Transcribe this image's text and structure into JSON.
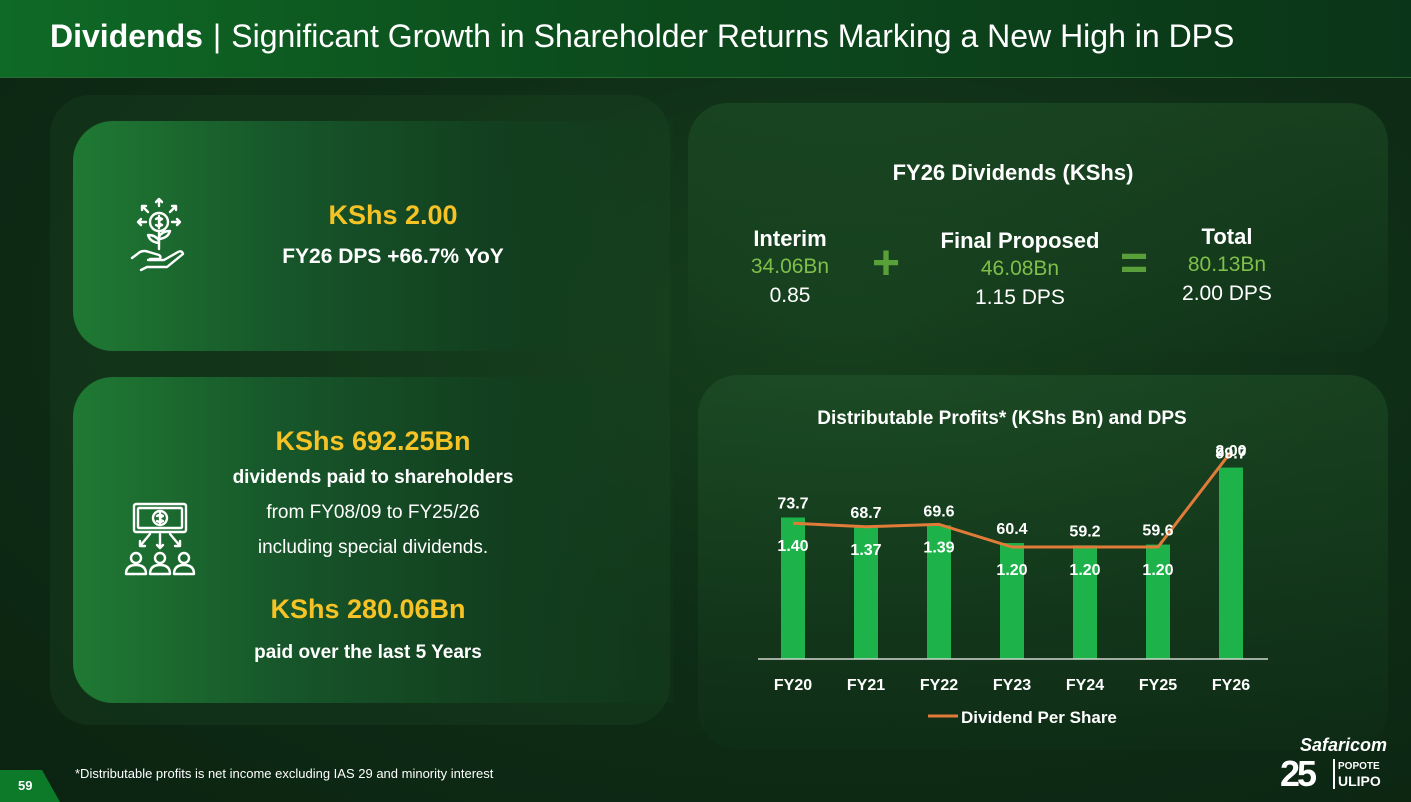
{
  "header": {
    "title_bold": "Dividends",
    "separator": "|",
    "title_rest": "Significant Growth in Shareholder Returns Marking a New High in DPS"
  },
  "card1": {
    "icon": "money-plant-hand-icon",
    "value": "KShs 2.00",
    "label": "FY26 DPS +66.7% YoY"
  },
  "card2": {
    "icon": "cash-distribution-people-icon",
    "value": "KShs 692.25Bn",
    "line1": "dividends paid to shareholders",
    "line2": "from FY08/09 to FY25/26",
    "line3": "including special dividends.",
    "value2": "KShs 280.06Bn",
    "line4": "paid over the last 5 Years"
  },
  "dividends": {
    "title": "FY26 Dividends (KShs)",
    "interim": {
      "label": "Interim",
      "amount": "34.06Bn",
      "dps": "0.85"
    },
    "plus": "+",
    "final": {
      "label": "Final Proposed",
      "amount": "46.08Bn",
      "dps": "1.15 DPS"
    },
    "equals": "=",
    "total": {
      "label": "Total",
      "amount": "80.13Bn",
      "dps": "2.00 DPS"
    }
  },
  "chart_data": {
    "type": "bar",
    "title": "Distributable Profits* (KShs Bn) and DPS",
    "categories": [
      "FY20",
      "FY21",
      "FY22",
      "FY23",
      "FY24",
      "FY25",
      "FY26"
    ],
    "series": [
      {
        "type": "bar",
        "values": [
          73.7,
          68.7,
          69.6,
          60.4,
          59.2,
          59.6,
          99.7
        ]
      },
      {
        "type": "line",
        "name": "Dividend Per Share",
        "values": [
          1.4,
          1.37,
          1.39,
          1.2,
          1.2,
          1.2,
          2.0
        ]
      }
    ],
    "bar_labels": [
      "73.7",
      "68.7",
      "69.6",
      "60.4",
      "59.2",
      "59.6",
      "99.7"
    ],
    "line_labels": [
      "1.40",
      "1.37",
      "1.39",
      "1.20",
      "1.20",
      "1.20",
      "2.00"
    ],
    "legend": "bottom",
    "grid": false,
    "colors": {
      "bar": "#1db34a",
      "line": "#e07b39"
    }
  },
  "footer": {
    "footnote": "*Distributable profits is net income excluding IAS 29 and minority interest",
    "page": "59",
    "logo_brand": "Safaricom",
    "logo_number": "25",
    "logo_tag1": "POPOTE",
    "logo_tag2": "ULIPO"
  }
}
